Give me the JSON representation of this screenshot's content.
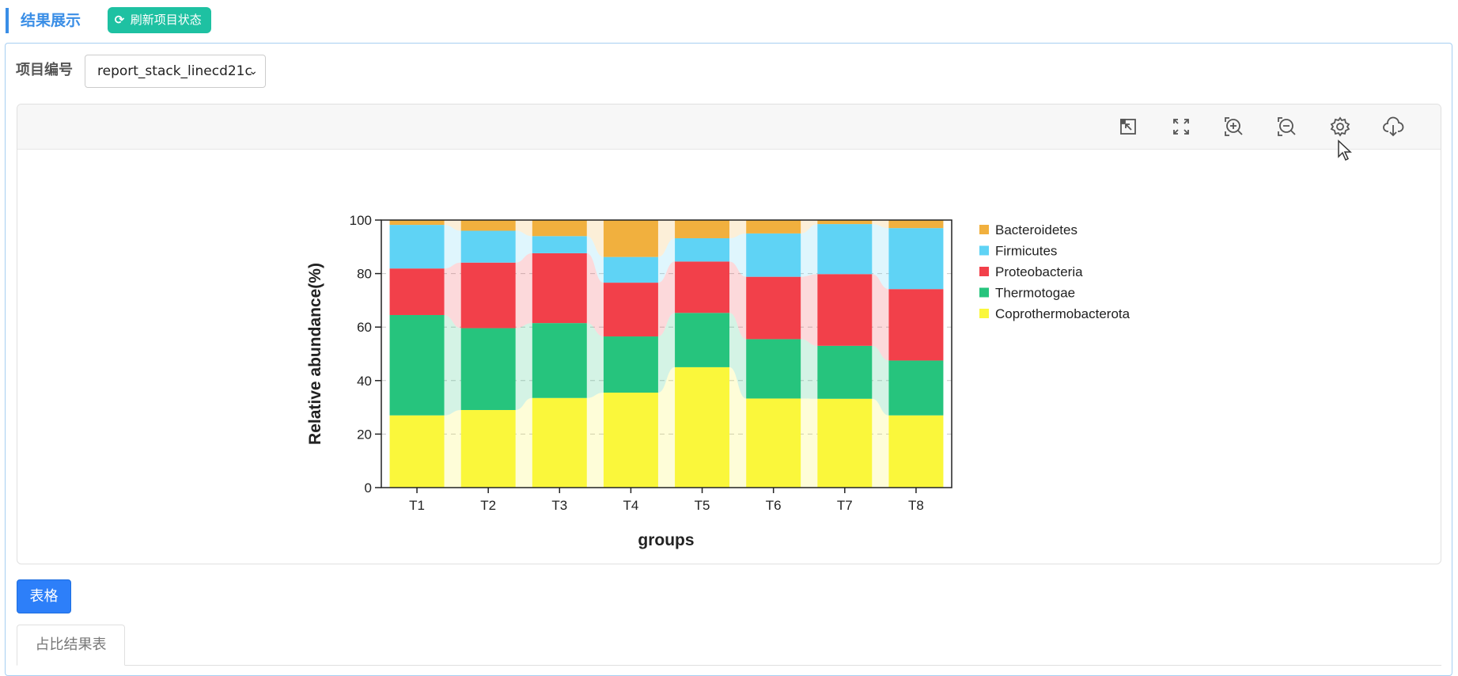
{
  "header": {
    "section_title": "结果展示",
    "refresh_label": "刷新项目状态"
  },
  "project": {
    "label": "项目编号",
    "selected": "report_stack_linecd21c"
  },
  "toolbar": {
    "icons": [
      "select-area-icon",
      "fullscreen-icon",
      "zoom-in-icon",
      "zoom-out-icon",
      "settings-icon",
      "download-icon"
    ]
  },
  "buttons": {
    "table": "表格"
  },
  "tabs": {
    "active": "占比结果表"
  },
  "chart_data": {
    "type": "bar",
    "stacked": true,
    "title": "",
    "xlabel": "groups",
    "ylabel": "Relative abundance(%)",
    "ylim": [
      0,
      100
    ],
    "yticks": [
      0,
      20,
      40,
      60,
      80,
      100
    ],
    "grid": "horizontal dashed",
    "legend_position": "right",
    "categories": [
      "T1",
      "T2",
      "T3",
      "T4",
      "T5",
      "T6",
      "T7",
      "T8"
    ],
    "series": [
      {
        "name": "Coprothermobacterota",
        "color": "#faf73b",
        "values": [
          27,
          29,
          33.5,
          35.5,
          45,
          33.3,
          33.2,
          27
        ]
      },
      {
        "name": "Thermotogae",
        "color": "#26c47d",
        "values": [
          37.5,
          30.6,
          28,
          21,
          20.3,
          22.2,
          19.8,
          20.5
        ]
      },
      {
        "name": "Proteobacteria",
        "color": "#f2404a",
        "values": [
          17.4,
          24.5,
          26.1,
          20.1,
          19.2,
          23.3,
          26.8,
          26.7
        ]
      },
      {
        "name": "Firmicutes",
        "color": "#5fd3f5",
        "values": [
          16.3,
          11.9,
          6.4,
          9.6,
          8.7,
          16.2,
          18.7,
          22.8
        ]
      },
      {
        "name": "Bacteroidetes",
        "color": "#f1b03e",
        "values": [
          1.8,
          4,
          6,
          13.8,
          6.8,
          5,
          1.5,
          3
        ]
      }
    ]
  }
}
